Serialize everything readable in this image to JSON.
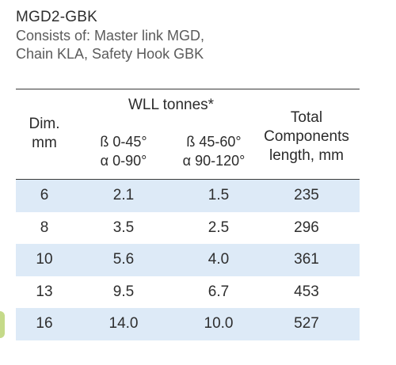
{
  "product": {
    "code": "MGD2-GBK",
    "description_line1": "Consists of: Master link MGD,",
    "description_line2": "Chain KLA, Safety Hook GBK"
  },
  "table": {
    "headers": {
      "dim_line1": "Dim.",
      "dim_line2": "mm",
      "wll": "WLL tonnes*",
      "col_a_line1": "ß 0-45°",
      "col_a_line2": "α 0-90°",
      "col_b_line1": "ß 45-60°",
      "col_b_line2": "α 90-120°",
      "total_line1": "Total",
      "total_line2": "Components",
      "total_line3": "length, mm"
    },
    "rows": [
      {
        "dim": "6",
        "a": "2.1",
        "b": "1.5",
        "length": "235"
      },
      {
        "dim": "8",
        "a": "3.5",
        "b": "2.5",
        "length": "296"
      },
      {
        "dim": "10",
        "a": "5.6",
        "b": "4.0",
        "length": "361"
      },
      {
        "dim": "13",
        "a": "9.5",
        "b": "6.7",
        "length": "453"
      },
      {
        "dim": "16",
        "a": "14.0",
        "b": "10.0",
        "length": "527"
      }
    ],
    "shaded_row_color": "#ddeaf7"
  }
}
